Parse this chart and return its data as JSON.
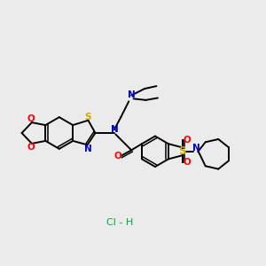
{
  "background_color": "#ebebeb",
  "figsize": [
    3.0,
    3.0
  ],
  "dpi": 100,
  "atom_colors": {
    "C": "#000000",
    "N": "#0000cc",
    "O": "#ff0000",
    "S": "#ccaa00",
    "Cl": "#00aa44"
  },
  "bond_color": "#000000",
  "lw": 1.4,
  "fontsize": 7.5
}
